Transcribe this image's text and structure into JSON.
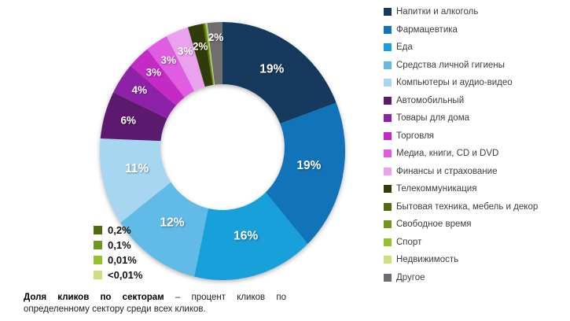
{
  "chart_data": {
    "type": "pie",
    "subtype": "donut",
    "title": "",
    "units": "%",
    "legend_position": "right",
    "start_angle_deg": 0,
    "series": [
      {
        "name": "Напитки и алкоголь",
        "value": 19,
        "display": "19%",
        "label_on_slice": true,
        "color": "#17395e"
      },
      {
        "name": "Фармацевтика",
        "value": 19,
        "display": "19%",
        "label_on_slice": true,
        "color": "#1274b8"
      },
      {
        "name": "Еда",
        "value": 16,
        "display": "16%",
        "label_on_slice": true,
        "color": "#18a0db"
      },
      {
        "name": "Средства личной гигиены",
        "value": 12,
        "display": "12%",
        "label_on_slice": true,
        "color": "#62bbe7"
      },
      {
        "name": "Компьютеры и аудио-видео",
        "value": 11,
        "display": "11%",
        "label_on_slice": true,
        "color": "#a7d6f0"
      },
      {
        "name": "Автомобильный",
        "value": 6,
        "display": "6%",
        "label_on_slice": true,
        "color": "#5b1a6e"
      },
      {
        "name": "Товары для дома",
        "value": 4,
        "display": "4%",
        "label_on_slice": true,
        "color": "#8d22a8"
      },
      {
        "name": "Торговля",
        "value": 3,
        "display": "3%",
        "label_on_slice": true,
        "color": "#c32bc4"
      },
      {
        "name": "Медиа, книги, CD и DVD",
        "value": 3,
        "display": "3%",
        "label_on_slice": true,
        "color": "#e05ce0"
      },
      {
        "name": "Финансы и страхование",
        "value": 3,
        "display": "3%",
        "label_on_slice": true,
        "color": "#eba2ee"
      },
      {
        "name": "Телекоммуникация",
        "value": 2,
        "display": "2%",
        "label_on_slice": true,
        "color": "#2f3c07"
      },
      {
        "name": "Бытовая техника, мебель и декор",
        "value": 0.2,
        "display": "0,2%",
        "label_on_slice": false,
        "color": "#4f6b0d"
      },
      {
        "name": "Свободное время",
        "value": 0.1,
        "display": "0,1%",
        "label_on_slice": false,
        "color": "#6f961e"
      },
      {
        "name": "Спорт",
        "value": 0.01,
        "display": "0,01%",
        "label_on_slice": false,
        "color": "#94c22a"
      },
      {
        "name": "Недвижимость",
        "value": 0.005,
        "display": "<0,01%",
        "label_on_slice": false,
        "color": "#cde07c"
      },
      {
        "name": "Другое",
        "value": 2,
        "display": "2%",
        "label_on_slice": true,
        "color": "#6e6e6e"
      }
    ]
  },
  "caption": {
    "bold": "Доля кликов по секторам",
    "text": "– процент кликов по определенному сектору среди всех кликов."
  }
}
